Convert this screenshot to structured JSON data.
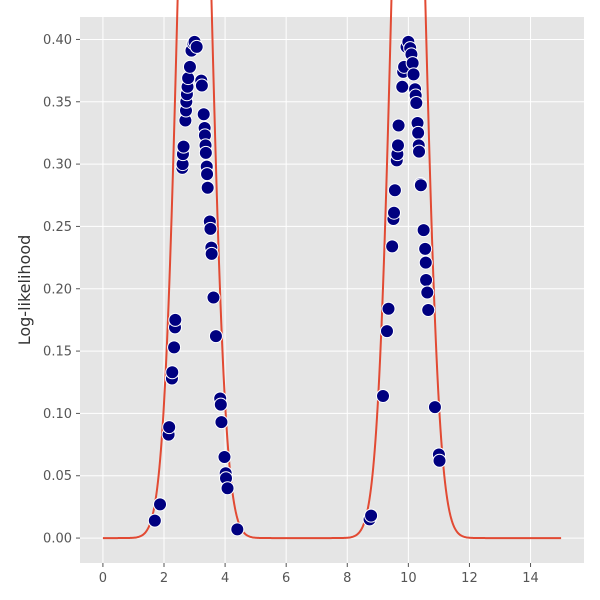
{
  "chart_data": {
    "type": "scatter",
    "title": "",
    "xlabel": "",
    "ylabel": "Log-likelihood",
    "xlim": [
      -0.75,
      15.75
    ],
    "ylim": [
      -0.02,
      0.418
    ],
    "xticks": [
      0,
      2,
      4,
      6,
      8,
      10,
      12,
      14
    ],
    "xtick_labels": [
      "0",
      "2",
      "4",
      "6",
      "8",
      "10",
      "12",
      "14"
    ],
    "yticks": [
      0.0,
      0.05,
      0.1,
      0.15,
      0.2,
      0.25,
      0.3,
      0.35,
      0.4
    ],
    "ytick_labels": [
      "0.00",
      "0.05",
      "0.10",
      "0.15",
      "0.20",
      "0.25",
      "0.30",
      "0.35",
      "0.40"
    ],
    "grid": true,
    "colors": {
      "background": "#e5e5e5",
      "grid": "#ffffff",
      "line": "#e24a33",
      "points": "#000080",
      "point_edge": "#ffffff"
    },
    "series": [
      {
        "type": "line",
        "curve": "mixture of two gaussian densities",
        "components": [
          {
            "mean": 3.0,
            "sd": 0.5,
            "weight": 0.5
          },
          {
            "mean": 10.0,
            "sd": 0.5,
            "weight": 0.5
          }
        ],
        "x_range": [
          0,
          15
        ]
      },
      {
        "type": "scatter",
        "points": [
          [
            1.7,
            0.014
          ],
          [
            1.87,
            0.027
          ],
          [
            2.15,
            0.083
          ],
          [
            2.17,
            0.089
          ],
          [
            2.26,
            0.128
          ],
          [
            2.27,
            0.133
          ],
          [
            2.33,
            0.153
          ],
          [
            2.36,
            0.169
          ],
          [
            2.37,
            0.175
          ],
          [
            2.6,
            0.297
          ],
          [
            2.61,
            0.3
          ],
          [
            2.62,
            0.308
          ],
          [
            2.64,
            0.314
          ],
          [
            2.7,
            0.335
          ],
          [
            2.72,
            0.343
          ],
          [
            2.73,
            0.35
          ],
          [
            2.75,
            0.356
          ],
          [
            2.77,
            0.362
          ],
          [
            2.79,
            0.369
          ],
          [
            2.85,
            0.378
          ],
          [
            2.9,
            0.391
          ],
          [
            2.96,
            0.397
          ],
          [
            3.0,
            0.398
          ],
          [
            3.07,
            0.394
          ],
          [
            3.22,
            0.367
          ],
          [
            3.24,
            0.363
          ],
          [
            3.3,
            0.34
          ],
          [
            3.33,
            0.329
          ],
          [
            3.34,
            0.323
          ],
          [
            3.36,
            0.315
          ],
          [
            3.37,
            0.309
          ],
          [
            3.4,
            0.298
          ],
          [
            3.41,
            0.292
          ],
          [
            3.43,
            0.281
          ],
          [
            3.5,
            0.254
          ],
          [
            3.52,
            0.248
          ],
          [
            3.55,
            0.233
          ],
          [
            3.56,
            0.228
          ],
          [
            3.62,
            0.193
          ],
          [
            3.7,
            0.162
          ],
          [
            3.84,
            0.112
          ],
          [
            3.86,
            0.107
          ],
          [
            3.88,
            0.093
          ],
          [
            3.98,
            0.065
          ],
          [
            4.02,
            0.052
          ],
          [
            4.03,
            0.048
          ],
          [
            4.08,
            0.04
          ],
          [
            4.4,
            0.007
          ],
          [
            8.73,
            0.015
          ],
          [
            8.78,
            0.018
          ],
          [
            9.17,
            0.114
          ],
          [
            9.3,
            0.166
          ],
          [
            9.35,
            0.184
          ],
          [
            9.47,
            0.234
          ],
          [
            9.51,
            0.256
          ],
          [
            9.53,
            0.261
          ],
          [
            9.56,
            0.279
          ],
          [
            9.62,
            0.303
          ],
          [
            9.64,
            0.308
          ],
          [
            9.66,
            0.315
          ],
          [
            9.68,
            0.331
          ],
          [
            9.8,
            0.362
          ],
          [
            9.83,
            0.374
          ],
          [
            9.86,
            0.378
          ],
          [
            9.94,
            0.394
          ],
          [
            10.0,
            0.398
          ],
          [
            10.06,
            0.393
          ],
          [
            10.1,
            0.388
          ],
          [
            10.14,
            0.381
          ],
          [
            10.17,
            0.372
          ],
          [
            10.22,
            0.36
          ],
          [
            10.24,
            0.355
          ],
          [
            10.26,
            0.349
          ],
          [
            10.3,
            0.333
          ],
          [
            10.32,
            0.325
          ],
          [
            10.34,
            0.315
          ],
          [
            10.35,
            0.31
          ],
          [
            10.4,
            0.284
          ],
          [
            10.41,
            0.283
          ],
          [
            10.5,
            0.247
          ],
          [
            10.55,
            0.232
          ],
          [
            10.57,
            0.221
          ],
          [
            10.58,
            0.207
          ],
          [
            10.62,
            0.197
          ],
          [
            10.65,
            0.183
          ],
          [
            10.87,
            0.105
          ],
          [
            11.0,
            0.067
          ],
          [
            11.02,
            0.062
          ]
        ]
      }
    ]
  }
}
